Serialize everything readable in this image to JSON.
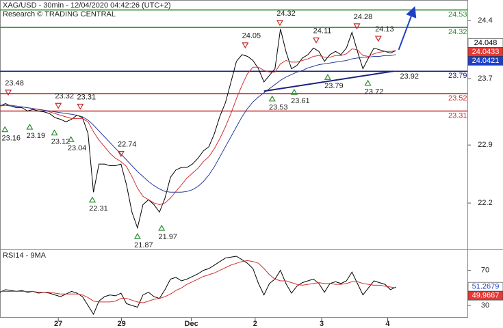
{
  "chart_data": [
    {
      "type": "line",
      "title": "XAG/USD - 30min - 12/04/2020 04:42:26 (UTC+2)",
      "subtitle": "Research © TRADING CENTRAL",
      "xlim": [
        0,
        85
      ],
      "ylim": [
        21.64,
        24.65
      ],
      "yticks": [
        24.4,
        23.7,
        22.9,
        22.2
      ],
      "series": [
        {
          "color": "#000000",
          "values": [
            23.37,
            23.4,
            23.37,
            23.35,
            23.35,
            23.31,
            23.33,
            23.31,
            23.3,
            23.28,
            23.23,
            23.21,
            23.18,
            23.21,
            23.26,
            23.23,
            23.04,
            22.33,
            22.67,
            22.67,
            22.65,
            22.65,
            22.67,
            22.42,
            22.09,
            21.9,
            22.18,
            22.24,
            22.18,
            22.09,
            22.26,
            22.51,
            22.6,
            22.63,
            22.63,
            22.67,
            22.74,
            22.83,
            22.88,
            23.04,
            23.25,
            23.41,
            23.66,
            23.91,
            23.99,
            23.97,
            23.92,
            23.82,
            23.66,
            23.74,
            23.82,
            24.3,
            24.03,
            23.82,
            23.86,
            23.95,
            23.99,
            24.07,
            24.03,
            23.91,
            23.99,
            24.03,
            23.99,
            24.07,
            24.26,
            24.03,
            23.82,
            23.95,
            24.07,
            24.05,
            24.03,
            24.01,
            24.04
          ]
        },
        {
          "color": "#d32f2f",
          "values": [
            23.37,
            23.38,
            23.38,
            23.37,
            23.36,
            23.35,
            23.34,
            23.33,
            23.32,
            23.3,
            23.28,
            23.26,
            23.24,
            23.22,
            23.22,
            23.22,
            23.18,
            23.06,
            22.96,
            22.88,
            22.8,
            22.74,
            22.7,
            22.64,
            22.52,
            22.38,
            22.28,
            22.24,
            22.2,
            22.18,
            22.2,
            22.26,
            22.34,
            22.42,
            22.5,
            22.56,
            22.62,
            22.7,
            22.76,
            22.86,
            22.98,
            23.12,
            23.28,
            23.46,
            23.62,
            23.76,
            23.84,
            23.84,
            23.8,
            23.78,
            23.78,
            23.88,
            23.92,
            23.9,
            23.9,
            23.92,
            23.94,
            23.97,
            23.98,
            23.96,
            23.96,
            23.98,
            23.98,
            24.0,
            24.06,
            24.05,
            23.98,
            23.97,
            24.0,
            24.02,
            24.03,
            24.03,
            24.04
          ]
        },
        {
          "color": "#2a3f9c",
          "values": [
            23.38,
            23.38,
            23.37,
            23.37,
            23.36,
            23.35,
            23.34,
            23.33,
            23.32,
            23.31,
            23.3,
            23.29,
            23.28,
            23.27,
            23.26,
            23.24,
            23.2,
            23.14,
            23.07,
            23.0,
            22.93,
            22.86,
            22.79,
            22.72,
            22.65,
            22.58,
            22.52,
            22.46,
            22.41,
            22.37,
            22.34,
            22.33,
            22.33,
            22.33,
            22.34,
            22.36,
            22.4,
            22.46,
            22.54,
            22.64,
            22.76,
            22.88,
            23.0,
            23.12,
            23.24,
            23.34,
            23.42,
            23.48,
            23.53,
            23.58,
            23.63,
            23.68,
            23.72,
            23.75,
            23.78,
            23.8,
            23.83,
            23.85,
            23.87,
            23.88,
            23.89,
            23.9,
            23.91,
            23.92,
            23.94,
            23.95,
            23.96,
            23.96,
            23.97,
            23.97,
            23.98,
            23.98,
            23.99
          ]
        }
      ],
      "levels": [
        {
          "value": 24.53,
          "color": "#2e8b2e"
        },
        {
          "value": 24.32,
          "color": "#2e8b2e"
        },
        {
          "value": 23.79,
          "color": "#1a237e"
        },
        {
          "value": 23.52,
          "color": "#c62828"
        },
        {
          "value": 23.31,
          "color": "#c62828"
        }
      ],
      "peaks": [
        {
          "x": 1.5,
          "value": 23.48
        },
        {
          "x": 10.6,
          "value": 23.32
        },
        {
          "x": 14.6,
          "value": 23.31
        },
        {
          "x": 22,
          "value": 22.74
        },
        {
          "x": 44.6,
          "value": 24.05
        },
        {
          "x": 50.9,
          "value": 24.32
        },
        {
          "x": 57.5,
          "value": 24.11
        },
        {
          "x": 64.9,
          "value": 24.28
        },
        {
          "x": 68.8,
          "value": 24.13
        }
      ],
      "troughs": [
        {
          "x": 0.9,
          "value": 23.16
        },
        {
          "x": 5.4,
          "value": 23.19
        },
        {
          "x": 9.9,
          "value": 23.12
        },
        {
          "x": 12.9,
          "value": 23.04
        },
        {
          "x": 16.8,
          "value": 22.31
        },
        {
          "x": 25,
          "value": 21.87
        },
        {
          "x": 29.4,
          "value": 21.97
        },
        {
          "x": 49.5,
          "value": 23.53
        },
        {
          "x": 53.5,
          "value": 23.61
        },
        {
          "x": 59.6,
          "value": 23.79
        },
        {
          "x": 66.9,
          "value": 23.72
        }
      ],
      "trendline": {
        "x": [
          48,
          71.5
        ],
        "values": [
          23.55,
          23.79
        ],
        "color": "#1a237e"
      },
      "trend_label": 23.92,
      "forecast": {
        "x": [
          72.5,
          75.2
        ],
        "values": [
          24.05,
          24.53
        ],
        "color": "#1e40c8"
      },
      "price_tags": [
        {
          "value": 24.048,
          "fill": "#ffffff",
          "text_color": "#000000"
        },
        {
          "value": 24.0433,
          "fill": "#e53935",
          "text_color": "#ffffff"
        },
        {
          "value": 24.0421,
          "fill": "#1e40c8",
          "text_color": "#ffffff"
        }
      ]
    },
    {
      "type": "line",
      "title": "RSI14 - 9MA",
      "xlim": [
        0,
        85
      ],
      "ylim": [
        16,
        93
      ],
      "yticks": [
        70,
        30
      ],
      "xticks": [
        {
          "value": 10.6,
          "label": "27"
        },
        {
          "value": 22.1,
          "label": "29"
        },
        {
          "value": 34.8,
          "label": "Dec"
        },
        {
          "value": 46.4,
          "label": "2"
        },
        {
          "value": 58.5,
          "label": "3"
        },
        {
          "value": 70.5,
          "label": "4"
        }
      ],
      "series": [
        {
          "color": "#000000",
          "values": [
            45,
            48,
            47,
            46,
            47,
            45,
            46,
            44,
            45,
            44,
            42,
            40,
            43,
            46,
            44,
            40,
            30,
            20,
            35,
            40,
            42,
            41,
            44,
            32,
            30,
            28,
            42,
            45,
            40,
            38,
            48,
            60,
            62,
            58,
            60,
            63,
            66,
            70,
            72,
            76,
            80,
            84,
            85,
            86,
            82,
            78,
            72,
            55,
            42,
            55,
            60,
            70,
            55,
            44,
            52,
            56,
            58,
            60,
            55,
            45,
            55,
            57,
            55,
            58,
            68,
            55,
            42,
            50,
            58,
            56,
            54,
            48,
            51
          ]
        },
        {
          "color": "#d32f2f",
          "values": [
            46,
            46,
            46,
            46,
            46,
            46,
            46,
            45,
            45,
            45,
            44,
            43,
            43,
            43,
            43,
            42,
            39,
            35,
            34,
            34,
            34,
            35,
            38,
            38,
            36,
            34,
            33,
            35,
            37,
            38,
            40,
            43,
            47,
            50,
            54,
            57,
            60,
            63,
            65,
            67,
            70,
            73,
            76,
            78,
            80,
            81,
            80,
            78,
            72,
            65,
            60,
            58,
            58,
            56,
            54,
            53,
            54,
            55,
            56,
            55,
            55,
            54,
            54,
            55,
            57,
            57,
            55,
            54,
            53,
            53,
            52,
            51,
            50
          ]
        }
      ],
      "price_tags": [
        {
          "value": 51.2679,
          "fill": "#ffffff",
          "text_color": "#1e40c8"
        },
        {
          "value": 49.9667,
          "fill": "#e53935",
          "text_color": "#ffffff"
        }
      ]
    }
  ]
}
